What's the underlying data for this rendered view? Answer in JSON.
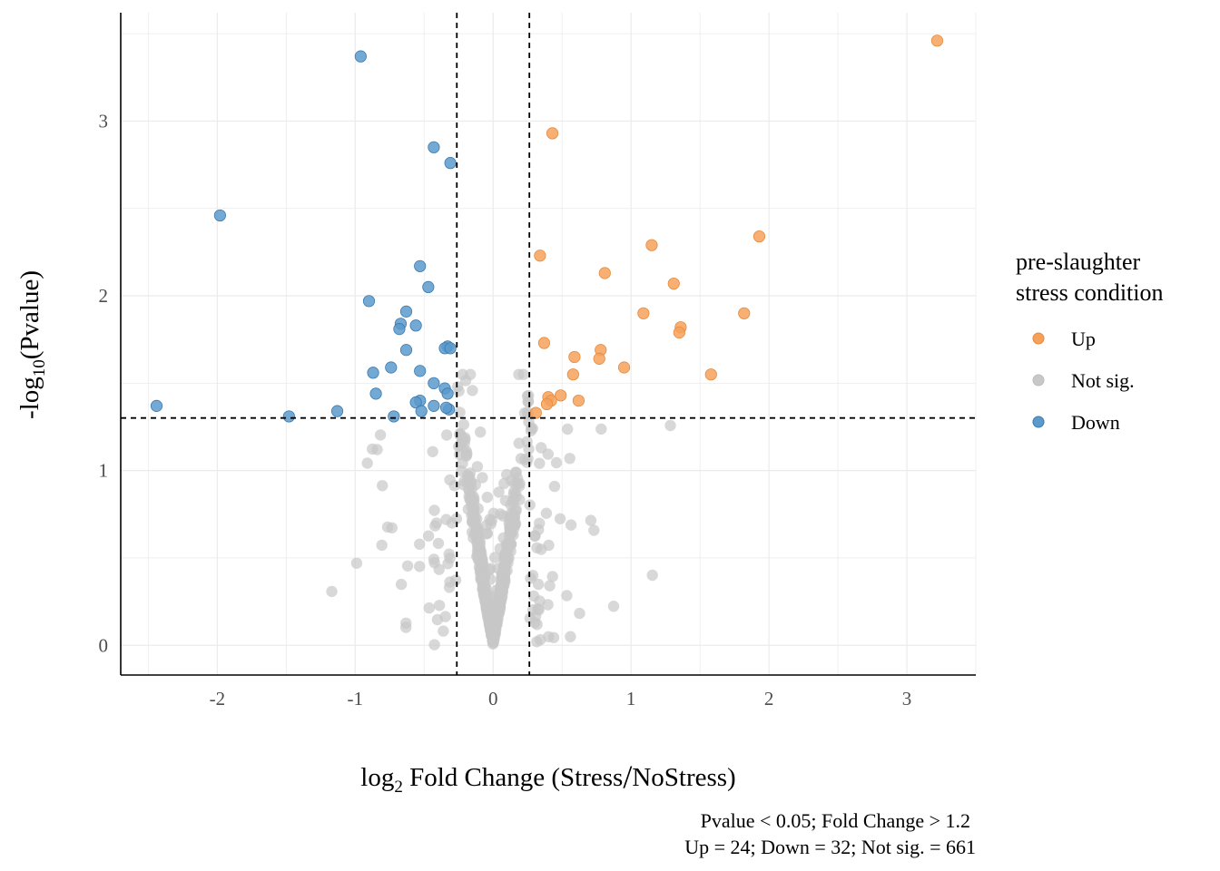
{
  "colors": {
    "Up": "#F6A15A",
    "NotSig": "#C8C8C8",
    "Down": "#5B9ACB",
    "DownStroke": "#3B7AB0",
    "UpStroke": "#E58A3D",
    "grid": "#EBEBEB"
  },
  "chart_data": {
    "type": "scatter",
    "title": "",
    "xlabel_base": "log",
    "xlabel_sub": "2",
    "xlabel_rest": " Fold Change (Stress",
    "xlabel_slash": "/",
    "xlabel_end": "NoStress)",
    "ylabel_base": "-log",
    "ylabel_sub": "10",
    "ylabel_rest": "(Pvalue)",
    "xlim": [
      -2.7,
      3.5
    ],
    "ylim": [
      -0.17,
      3.62
    ],
    "x_ticks": [
      -2,
      -1,
      0,
      1,
      2,
      3
    ],
    "y_ticks": [
      0,
      1,
      2,
      3
    ],
    "grid": true,
    "thresholds": {
      "x": [
        -0.263,
        0.263
      ],
      "y": 1.301
    },
    "legend": {
      "title_line1": "pre-slaughter",
      "title_line2": "stress condition",
      "placement": "right",
      "entries": [
        "Up",
        "Not sig.",
        "Down"
      ]
    },
    "caption_line1": "Pvalue < 0.05; Fold Change > 1.2",
    "caption_line2": "Up = 24; Down = 32; Not sig. = 661",
    "series": [
      {
        "name": "Up",
        "points": [
          [
            3.22,
            3.46
          ],
          [
            0.43,
            2.93
          ],
          [
            1.93,
            2.34
          ],
          [
            1.15,
            2.29
          ],
          [
            0.34,
            2.23
          ],
          [
            0.81,
            2.13
          ],
          [
            1.31,
            2.07
          ],
          [
            1.09,
            1.9
          ],
          [
            1.82,
            1.9
          ],
          [
            1.36,
            1.82
          ],
          [
            1.35,
            1.79
          ],
          [
            0.37,
            1.73
          ],
          [
            0.78,
            1.69
          ],
          [
            0.59,
            1.65
          ],
          [
            0.77,
            1.64
          ],
          [
            0.95,
            1.59
          ],
          [
            0.58,
            1.55
          ],
          [
            1.58,
            1.55
          ],
          [
            0.49,
            1.43
          ],
          [
            0.4,
            1.42
          ],
          [
            0.62,
            1.4
          ],
          [
            0.42,
            1.4
          ],
          [
            0.39,
            1.38
          ],
          [
            0.31,
            1.33
          ]
        ]
      },
      {
        "name": "Down",
        "points": [
          [
            -0.96,
            3.37
          ],
          [
            -0.43,
            2.85
          ],
          [
            -0.31,
            2.76
          ],
          [
            -1.98,
            2.46
          ],
          [
            -0.53,
            2.17
          ],
          [
            -0.47,
            2.05
          ],
          [
            -0.9,
            1.97
          ],
          [
            -0.63,
            1.91
          ],
          [
            -0.67,
            1.84
          ],
          [
            -0.68,
            1.81
          ],
          [
            -0.56,
            1.83
          ],
          [
            -0.33,
            1.71
          ],
          [
            -0.35,
            1.7
          ],
          [
            -0.31,
            1.7
          ],
          [
            -0.63,
            1.69
          ],
          [
            -0.74,
            1.59
          ],
          [
            -0.87,
            1.56
          ],
          [
            -0.53,
            1.57
          ],
          [
            -0.43,
            1.5
          ],
          [
            -0.35,
            1.47
          ],
          [
            -0.33,
            1.44
          ],
          [
            -0.85,
            1.44
          ],
          [
            -0.53,
            1.4
          ],
          [
            -0.56,
            1.39
          ],
          [
            -0.43,
            1.37
          ],
          [
            -2.44,
            1.37
          ],
          [
            -0.32,
            1.35
          ],
          [
            -0.34,
            1.36
          ],
          [
            -0.52,
            1.34
          ],
          [
            -1.13,
            1.34
          ],
          [
            -0.72,
            1.31
          ],
          [
            -1.48,
            1.31
          ]
        ]
      }
    ]
  }
}
